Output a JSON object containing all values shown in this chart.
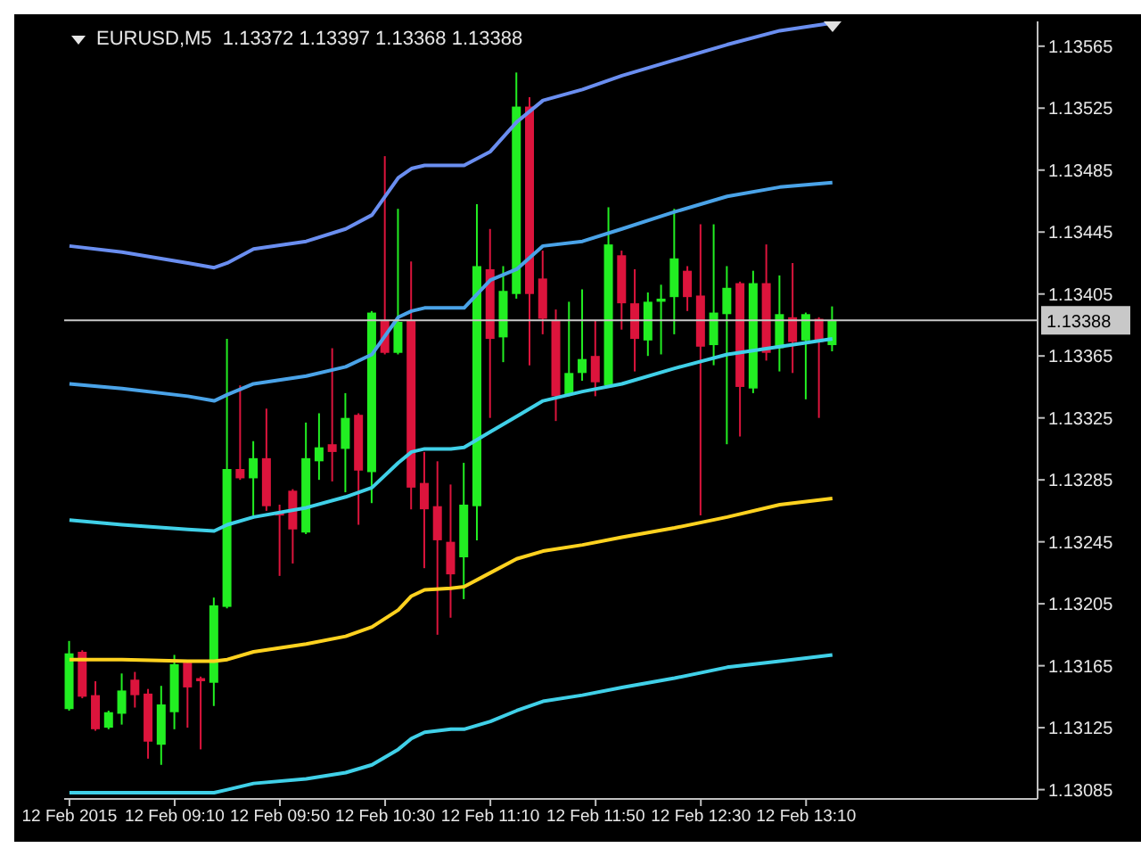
{
  "chart_data": {
    "type": "candlestick",
    "title": "EURUSD,M5  1.13372 1.13397 1.13368 1.13388",
    "x": [
      "2015-02-12T08:30",
      "2015-02-12T08:35",
      "2015-02-12T08:40",
      "2015-02-12T08:45",
      "2015-02-12T08:50",
      "2015-02-12T08:55",
      "2015-02-12T09:00",
      "2015-02-12T09:05",
      "2015-02-12T09:10",
      "2015-02-12T09:15",
      "2015-02-12T09:20",
      "2015-02-12T09:25",
      "2015-02-12T09:30",
      "2015-02-12T09:35",
      "2015-02-12T09:40",
      "2015-02-12T09:45",
      "2015-02-12T09:50",
      "2015-02-12T09:55",
      "2015-02-12T10:00",
      "2015-02-12T10:05",
      "2015-02-12T10:10",
      "2015-02-12T10:15",
      "2015-02-12T10:20",
      "2015-02-12T10:25",
      "2015-02-12T10:30",
      "2015-02-12T10:35",
      "2015-02-12T10:40",
      "2015-02-12T10:45",
      "2015-02-12T10:50",
      "2015-02-12T10:55",
      "2015-02-12T11:00",
      "2015-02-12T11:05",
      "2015-02-12T11:10",
      "2015-02-12T11:15",
      "2015-02-12T11:20",
      "2015-02-12T11:25",
      "2015-02-12T11:30",
      "2015-02-12T11:35",
      "2015-02-12T11:40",
      "2015-02-12T11:45",
      "2015-02-12T11:50",
      "2015-02-12T11:55",
      "2015-02-12T12:00",
      "2015-02-12T12:05",
      "2015-02-12T12:10",
      "2015-02-12T12:15",
      "2015-02-12T12:20",
      "2015-02-12T12:25",
      "2015-02-12T12:30",
      "2015-02-12T12:35",
      "2015-02-12T12:40",
      "2015-02-12T12:45",
      "2015-02-12T12:50",
      "2015-02-12T12:55",
      "2015-02-12T13:00",
      "2015-02-12T13:05",
      "2015-02-12T13:10",
      "2015-02-12T13:15",
      "2015-02-12T13:20"
    ],
    "ohlc": [
      [
        1.13137,
        1.13181,
        1.13136,
        1.13173
      ],
      [
        1.13174,
        1.13175,
        1.13144,
        1.13145
      ],
      [
        1.13146,
        1.13155,
        1.13123,
        1.13124
      ],
      [
        1.13125,
        1.13136,
        1.13124,
        1.13135
      ],
      [
        1.13134,
        1.1316,
        1.13127,
        1.13149
      ],
      [
        1.13156,
        1.13161,
        1.13138,
        1.13146
      ],
      [
        1.13147,
        1.1315,
        1.13105,
        1.13116
      ],
      [
        1.13114,
        1.13152,
        1.13101,
        1.1314
      ],
      [
        1.13135,
        1.13172,
        1.13124,
        1.13166
      ],
      [
        1.13167,
        1.13168,
        1.13125,
        1.13151
      ],
      [
        1.13157,
        1.13158,
        1.13111,
        1.13155
      ],
      [
        1.13154,
        1.13209,
        1.13139,
        1.13204
      ],
      [
        1.13203,
        1.13376,
        1.13202,
        1.13292
      ],
      [
        1.13292,
        1.13346,
        1.13285,
        1.13286
      ],
      [
        1.13286,
        1.1331,
        1.13262,
        1.13299
      ],
      [
        1.13299,
        1.13331,
        1.13265,
        1.13268
      ],
      [
        1.13264,
        1.13269,
        1.13223,
        1.13262
      ],
      [
        1.13278,
        1.13279,
        1.13231,
        1.13253
      ],
      [
        1.13251,
        1.13322,
        1.1325,
        1.13299
      ],
      [
        1.13297,
        1.13328,
        1.13285,
        1.13306
      ],
      [
        1.13308,
        1.1337,
        1.13284,
        1.13303
      ],
      [
        1.13305,
        1.13341,
        1.13277,
        1.13325
      ],
      [
        1.13327,
        1.13328,
        1.13256,
        1.13291
      ],
      [
        1.1329,
        1.13394,
        1.1327,
        1.13393
      ],
      [
        1.13388,
        1.13494,
        1.13366,
        1.13367
      ],
      [
        1.13367,
        1.1346,
        1.13366,
        1.13387
      ],
      [
        1.13388,
        1.13426,
        1.13266,
        1.1328
      ],
      [
        1.13283,
        1.13303,
        1.13228,
        1.13266
      ],
      [
        1.13268,
        1.13297,
        1.13185,
        1.13246
      ],
      [
        1.13245,
        1.13282,
        1.13196,
        1.13224
      ],
      [
        1.13235,
        1.13296,
        1.13208,
        1.13269
      ],
      [
        1.13268,
        1.13463,
        1.13246,
        1.13423
      ],
      [
        1.13421,
        1.13447,
        1.13325,
        1.13376
      ],
      [
        1.13377,
        1.13423,
        1.13361,
        1.13407
      ],
      [
        1.13405,
        1.13548,
        1.13402,
        1.13526
      ],
      [
        1.13526,
        1.13532,
        1.13359,
        1.13405
      ],
      [
        1.13415,
        1.13433,
        1.13379,
        1.13389
      ],
      [
        1.13388,
        1.13395,
        1.13323,
        1.13339
      ],
      [
        1.1334,
        1.134,
        1.13339,
        1.13354
      ],
      [
        1.13354,
        1.13408,
        1.13349,
        1.13363
      ],
      [
        1.13365,
        1.13388,
        1.13339,
        1.13348
      ],
      [
        1.13346,
        1.13461,
        1.13345,
        1.13437
      ],
      [
        1.1343,
        1.13433,
        1.13382,
        1.13399
      ],
      [
        1.13399,
        1.13421,
        1.13355,
        1.13376
      ],
      [
        1.13375,
        1.13406,
        1.13365,
        1.134
      ],
      [
        1.134,
        1.13411,
        1.13366,
        1.13402
      ],
      [
        1.13403,
        1.1346,
        1.13379,
        1.13428
      ],
      [
        1.1342,
        1.13423,
        1.13394,
        1.13403
      ],
      [
        1.13404,
        1.1345,
        1.13262,
        1.13371
      ],
      [
        1.13372,
        1.1345,
        1.13359,
        1.13393
      ],
      [
        1.13392,
        1.13423,
        1.13308,
        1.13409
      ],
      [
        1.13412,
        1.13413,
        1.13313,
        1.13345
      ],
      [
        1.13344,
        1.1342,
        1.13341,
        1.13412
      ],
      [
        1.13412,
        1.13437,
        1.13362,
        1.13367
      ],
      [
        1.1337,
        1.13417,
        1.13355,
        1.13392
      ],
      [
        1.1339,
        1.13425,
        1.13354,
        1.13374
      ],
      [
        1.13375,
        1.13393,
        1.13337,
        1.13392
      ],
      [
        1.13389,
        1.1339,
        1.13325,
        1.13374
      ],
      [
        1.13372,
        1.13397,
        1.13368,
        1.13388
      ]
    ],
    "colors": [
      "#22ee22",
      "#dc143c",
      "#dc143c",
      "#22ee22",
      "#22ee22",
      "#dc143c",
      "#dc143c",
      "#22ee22",
      "#22ee22",
      "#dc143c",
      "#dc143c",
      "#22ee22",
      "#22ee22",
      "#dc143c",
      "#22ee22",
      "#dc143c",
      "#dc143c",
      "#dc143c",
      "#22ee22",
      "#22ee22",
      "#dc143c",
      "#22ee22",
      "#dc143c",
      "#22ee22",
      "#dc143c",
      "#22ee22",
      "#dc143c",
      "#dc143c",
      "#dc143c",
      "#dc143c",
      "#22ee22",
      "#22ee22",
      "#dc143c",
      "#22ee22",
      "#22ee22",
      "#dc143c",
      "#dc143c",
      "#dc143c",
      "#22ee22",
      "#22ee22",
      "#dc143c",
      "#22ee22",
      "#dc143c",
      "#dc143c",
      "#22ee22",
      "#22ee22",
      "#22ee22",
      "#dc143c",
      "#dc143c",
      "#22ee22",
      "#22ee22",
      "#dc143c",
      "#22ee22",
      "#dc143c",
      "#22ee22",
      "#dc143c",
      "#22ee22",
      "#dc143c",
      "#22ee22"
    ],
    "series": [
      {
        "type": "line",
        "color": "#6a8ef0",
        "x": [
          "2015-02-12T08:30",
          "2015-02-12T08:50",
          "2015-02-12T09:15",
          "2015-02-12T09:25",
          "2015-02-12T09:30",
          "2015-02-12T09:40",
          "2015-02-12T10:00",
          "2015-02-12T10:15",
          "2015-02-12T10:25",
          "2015-02-12T10:35",
          "2015-02-12T10:40",
          "2015-02-12T10:45",
          "2015-02-12T10:55",
          "2015-02-12T11:00",
          "2015-02-12T11:10",
          "2015-02-12T11:20",
          "2015-02-12T11:30",
          "2015-02-12T11:45",
          "2015-02-12T12:00",
          "2015-02-12T12:20",
          "2015-02-12T12:40",
          "2015-02-12T13:00",
          "2015-02-12T13:20"
        ],
        "values": [
          1.13436,
          1.13432,
          1.13425,
          1.13422,
          1.13425,
          1.13434,
          1.13439,
          1.13447,
          1.13456,
          1.1348,
          1.13486,
          1.13488,
          1.13488,
          1.13488,
          1.13497,
          1.13516,
          1.1353,
          1.13537,
          1.13546,
          1.13556,
          1.13566,
          1.13575,
          1.1358
        ]
      },
      {
        "type": "line",
        "color": "#4aa3e8",
        "x": [
          "2015-02-12T08:30",
          "2015-02-12T08:50",
          "2015-02-12T09:15",
          "2015-02-12T09:25",
          "2015-02-12T09:30",
          "2015-02-12T09:40",
          "2015-02-12T10:00",
          "2015-02-12T10:15",
          "2015-02-12T10:25",
          "2015-02-12T10:35",
          "2015-02-12T10:40",
          "2015-02-12T10:45",
          "2015-02-12T10:55",
          "2015-02-12T11:00",
          "2015-02-12T11:10",
          "2015-02-12T11:20",
          "2015-02-12T11:30",
          "2015-02-12T11:45",
          "2015-02-12T12:00",
          "2015-02-12T12:20",
          "2015-02-12T12:40",
          "2015-02-12T13:00",
          "2015-02-12T13:20"
        ],
        "values": [
          1.13347,
          1.13344,
          1.13339,
          1.13336,
          1.1334,
          1.13347,
          1.13352,
          1.13358,
          1.13366,
          1.1339,
          1.13394,
          1.13396,
          1.13396,
          1.13396,
          1.13414,
          1.13421,
          1.13436,
          1.13439,
          1.13447,
          1.13458,
          1.13468,
          1.13474,
          1.13477
        ]
      },
      {
        "type": "line",
        "color": "#40d0e8",
        "x": [
          "2015-02-12T08:30",
          "2015-02-12T08:50",
          "2015-02-12T09:15",
          "2015-02-12T09:25",
          "2015-02-12T09:30",
          "2015-02-12T09:40",
          "2015-02-12T10:00",
          "2015-02-12T10:15",
          "2015-02-12T10:25",
          "2015-02-12T10:35",
          "2015-02-12T10:40",
          "2015-02-12T10:45",
          "2015-02-12T10:55",
          "2015-02-12T11:00",
          "2015-02-12T11:10",
          "2015-02-12T11:20",
          "2015-02-12T11:30",
          "2015-02-12T11:45",
          "2015-02-12T12:00",
          "2015-02-12T12:20",
          "2015-02-12T12:40",
          "2015-02-12T13:00",
          "2015-02-12T13:20"
        ],
        "values": [
          1.13259,
          1.13256,
          1.13253,
          1.13252,
          1.13256,
          1.13261,
          1.13267,
          1.13274,
          1.1328,
          1.13296,
          1.13303,
          1.13305,
          1.13305,
          1.13306,
          1.13316,
          1.13326,
          1.13336,
          1.13342,
          1.13347,
          1.13357,
          1.13366,
          1.13371,
          1.13376
        ]
      },
      {
        "type": "line",
        "color": "#ffd21f",
        "x": [
          "2015-02-12T08:30",
          "2015-02-12T08:50",
          "2015-02-12T09:15",
          "2015-02-12T09:25",
          "2015-02-12T09:30",
          "2015-02-12T09:40",
          "2015-02-12T10:00",
          "2015-02-12T10:15",
          "2015-02-12T10:25",
          "2015-02-12T10:35",
          "2015-02-12T10:40",
          "2015-02-12T10:45",
          "2015-02-12T10:55",
          "2015-02-12T11:00",
          "2015-02-12T11:10",
          "2015-02-12T11:20",
          "2015-02-12T11:30",
          "2015-02-12T11:45",
          "2015-02-12T12:00",
          "2015-02-12T12:20",
          "2015-02-12T12:40",
          "2015-02-12T13:00",
          "2015-02-12T13:20"
        ],
        "values": [
          1.13169,
          1.13169,
          1.13168,
          1.13168,
          1.13169,
          1.13174,
          1.13179,
          1.13184,
          1.1319,
          1.13201,
          1.1321,
          1.13214,
          1.13215,
          1.13216,
          1.13225,
          1.13234,
          1.13239,
          1.13243,
          1.13248,
          1.13254,
          1.13261,
          1.13269,
          1.13273
        ]
      },
      {
        "type": "line",
        "color": "#40d0e8",
        "x": [
          "2015-02-12T08:30",
          "2015-02-12T08:50",
          "2015-02-12T09:15",
          "2015-02-12T09:25",
          "2015-02-12T09:30",
          "2015-02-12T09:40",
          "2015-02-12T10:00",
          "2015-02-12T10:15",
          "2015-02-12T10:25",
          "2015-02-12T10:35",
          "2015-02-12T10:40",
          "2015-02-12T10:45",
          "2015-02-12T10:55",
          "2015-02-12T11:00",
          "2015-02-12T11:10",
          "2015-02-12T11:20",
          "2015-02-12T11:30",
          "2015-02-12T11:45",
          "2015-02-12T12:00",
          "2015-02-12T12:20",
          "2015-02-12T12:40",
          "2015-02-12T13:00",
          "2015-02-12T13:20"
        ],
        "values": [
          1.13083,
          1.13083,
          1.13083,
          1.13083,
          1.13085,
          1.13089,
          1.13092,
          1.13096,
          1.13101,
          1.13111,
          1.13118,
          1.13122,
          1.13124,
          1.13124,
          1.13129,
          1.13136,
          1.13142,
          1.13146,
          1.13151,
          1.13157,
          1.13164,
          1.13168,
          1.13172
        ]
      }
    ],
    "xlim": [
      "2015-02-12T08:28",
      "2015-02-12T14:38"
    ],
    "xticks": [
      {
        "value": "2015-02-12T08:30",
        "label": "12 Feb 2015"
      },
      {
        "value": "2015-02-12T09:10",
        "label": "12 Feb 09:10"
      },
      {
        "value": "2015-02-12T09:50",
        "label": "12 Feb 09:50"
      },
      {
        "value": "2015-02-12T10:30",
        "label": "12 Feb 10:30"
      },
      {
        "value": "2015-02-12T11:10",
        "label": "12 Feb 11:10"
      },
      {
        "value": "2015-02-12T11:50",
        "label": "12 Feb 11:50"
      },
      {
        "value": "2015-02-12T12:30",
        "label": "12 Feb 12:30"
      },
      {
        "value": "2015-02-12T13:10",
        "label": "12 Feb 13:10"
      }
    ],
    "ylim": [
      1.13079,
      1.13581
    ],
    "yticks": [
      1.13085,
      1.13125,
      1.13165,
      1.13205,
      1.13245,
      1.13285,
      1.13325,
      1.13365,
      1.13405,
      1.13445,
      1.13485,
      1.13525,
      1.13565
    ],
    "ref_lines": [
      {
        "axis": "y",
        "value": 1.13388,
        "label": "1.13388",
        "color": "#c8c8c8"
      }
    ],
    "marker": "none",
    "grid": false
  }
}
